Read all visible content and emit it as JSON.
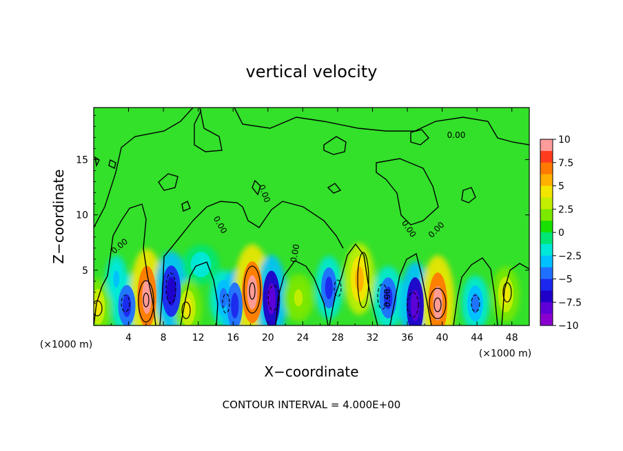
{
  "chart_data": {
    "type": "heatmap",
    "title": "vertical velocity",
    "xlabel": "X−coordinate",
    "ylabel": "Z−coordinate",
    "x_unit_left": "(×1000 m)",
    "x_unit_right": "(×1000 m)",
    "x_range": [
      0,
      50
    ],
    "y_range": [
      0,
      19.7
    ],
    "x_ticks": [
      4,
      8,
      12,
      16,
      20,
      24,
      28,
      32,
      36,
      40,
      44,
      48
    ],
    "y_ticks": [
      5,
      10,
      15
    ],
    "colorbar": {
      "range": [
        -10,
        10
      ],
      "ticks": [
        "10",
        "7.5",
        "5",
        "2.5",
        "0",
        "−2.5",
        "−5",
        "−7.5",
        "−10"
      ],
      "colors": [
        "#ff9c9c",
        "#ff3c1e",
        "#ff7a00",
        "#ffb000",
        "#f2e600",
        "#c4ee00",
        "#7ce800",
        "#18e000",
        "#00e676",
        "#00e8d8",
        "#00c0ff",
        "#2070ff",
        "#1c28ee",
        "#2000c8",
        "#6000d8",
        "#8a00d0"
      ]
    },
    "contour_interval_text": "CONTOUR INTERVAL = 4.000E+00",
    "contour_labels": [
      "0.00",
      "0.00",
      "0.00",
      "0.00",
      "0.00",
      "0.00",
      "0.00",
      "0.00"
    ],
    "cells": [
      {
        "x": 0.5,
        "z": 1.7,
        "w": 0.8,
        "v": 4
      },
      {
        "x": 2.6,
        "z": 4.2,
        "w": 0.7,
        "v": -3
      },
      {
        "x": 3.8,
        "z": 1.8,
        "w": 1.0,
        "v": -5
      },
      {
        "x": 6.1,
        "z": 2.6,
        "w": 1.1,
        "v": 9
      },
      {
        "x": 8.9,
        "z": 3.1,
        "w": 1.1,
        "v": -7
      },
      {
        "x": 10.8,
        "z": 1.6,
        "w": 0.9,
        "v": 4
      },
      {
        "x": 12.3,
        "z": 5.5,
        "w": 1.2,
        "v": -2
      },
      {
        "x": 14.9,
        "z": 2.5,
        "w": 0.9,
        "v": -4
      },
      {
        "x": 16.2,
        "z": 1.8,
        "w": 0.9,
        "v": -6
      },
      {
        "x": 18.2,
        "z": 3.0,
        "w": 1.2,
        "v": 9
      },
      {
        "x": 20.4,
        "z": 2.4,
        "w": 1.0,
        "v": -8
      },
      {
        "x": 23.5,
        "z": 2.5,
        "w": 1.0,
        "v": 3
      },
      {
        "x": 27.0,
        "z": 3.4,
        "w": 0.9,
        "v": -5
      },
      {
        "x": 30.5,
        "z": 4.2,
        "w": 1.0,
        "v": 6
      },
      {
        "x": 33.8,
        "z": 2.5,
        "w": 1.0,
        "v": -5
      },
      {
        "x": 36.9,
        "z": 1.8,
        "w": 1.0,
        "v": -8
      },
      {
        "x": 39.5,
        "z": 2.0,
        "w": 1.1,
        "v": 9
      },
      {
        "x": 43.8,
        "z": 2.0,
        "w": 0.9,
        "v": -4
      },
      {
        "x": 47.3,
        "z": 2.8,
        "w": 0.9,
        "v": 4
      }
    ]
  }
}
